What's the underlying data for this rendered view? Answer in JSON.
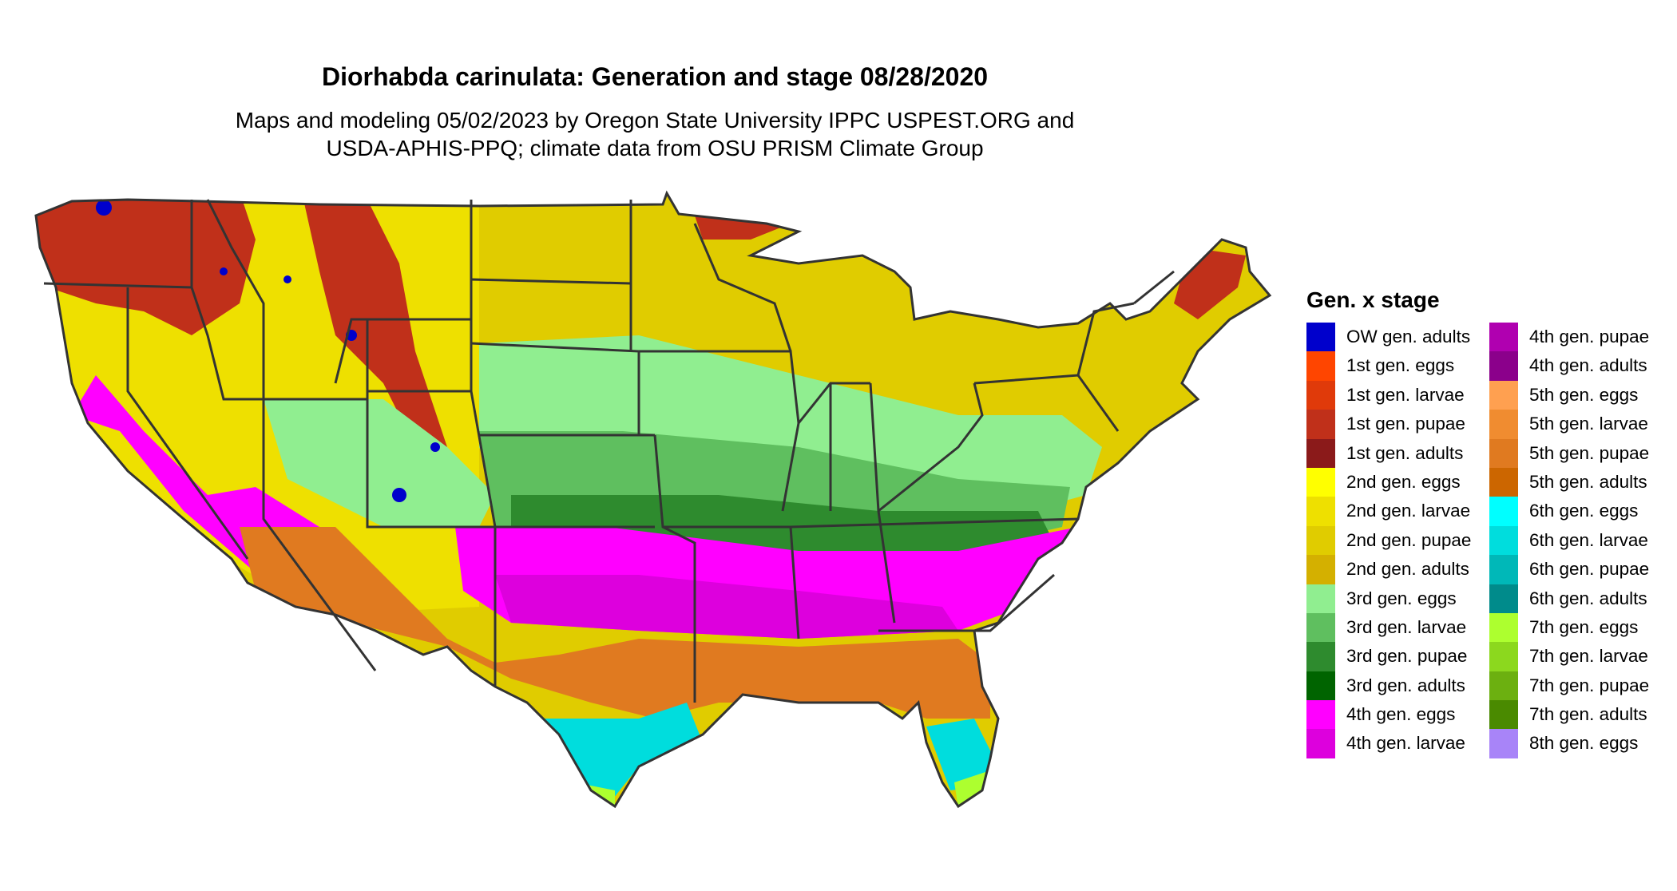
{
  "title": "Diorhabda carinulata: Generation and stage 08/28/2020",
  "subtitle_lines": [
    "Maps and modeling 05/02/2023 by Oregon State University IPPC USPEST.ORG and",
    "USDA-APHIS-PPQ; climate data from OSU PRISM Climate Group"
  ],
  "legend": {
    "title": "Gen. x stage",
    "columns": [
      [
        {
          "label": "OW gen. adults",
          "color": "#0000cc"
        },
        {
          "label": "1st gen. eggs",
          "color": "#ff4500"
        },
        {
          "label": "1st gen. larvae",
          "color": "#e03a0a"
        },
        {
          "label": "1st gen. pupae",
          "color": "#c0301a"
        },
        {
          "label": "1st gen. adults",
          "color": "#8b1a1a"
        },
        {
          "label": "2nd gen. eggs",
          "color": "#ffff00"
        },
        {
          "label": "2nd gen. larvae",
          "color": "#eee000"
        },
        {
          "label": "2nd gen. pupae",
          "color": "#e0cc00"
        },
        {
          "label": "2nd gen. adults",
          "color": "#d4b000"
        },
        {
          "label": "3rd gen. eggs",
          "color": "#90ee90"
        },
        {
          "label": "3rd gen. larvae",
          "color": "#5fbf5f"
        },
        {
          "label": "3rd gen. pupae",
          "color": "#2e8b2e"
        },
        {
          "label": "3rd gen. adults",
          "color": "#006400"
        },
        {
          "label": "4th gen. eggs",
          "color": "#ff00ff"
        },
        {
          "label": "4th gen. larvae",
          "color": "#dd00dd"
        }
      ],
      [
        {
          "label": "4th gen. pupae",
          "color": "#b000b0"
        },
        {
          "label": "4th gen. adults",
          "color": "#8b008b"
        },
        {
          "label": "5th gen. eggs",
          "color": "#ffa050"
        },
        {
          "label": "5th gen. larvae",
          "color": "#f08c30"
        },
        {
          "label": "5th gen. pupae",
          "color": "#e07a20"
        },
        {
          "label": "5th gen. adults",
          "color": "#cc6600"
        },
        {
          "label": "6th gen. eggs",
          "color": "#00ffff"
        },
        {
          "label": "6th gen. larvae",
          "color": "#00dddd"
        },
        {
          "label": "6th gen. pupae",
          "color": "#00b8b8"
        },
        {
          "label": "6th gen. adults",
          "color": "#008b8b"
        },
        {
          "label": "7th gen. eggs",
          "color": "#adff2f"
        },
        {
          "label": "7th gen. larvae",
          "color": "#8cd81e"
        },
        {
          "label": "7th gen. pupae",
          "color": "#6cb010"
        },
        {
          "label": "7th gen. adults",
          "color": "#4a8a00"
        },
        {
          "label": "8th gen. eggs",
          "color": "#a884f8"
        }
      ]
    ]
  },
  "region_colors": {
    "border": "#333333",
    "northwest": "#c0301a",
    "west_interior": "#eee000",
    "plains": "#e0cc00",
    "central": "#90ee90",
    "midsouth": "#5fbf5f",
    "midsouth_deep": "#2e8b2e",
    "south": "#ff00ff",
    "south_deep": "#dd00dd",
    "gulf": "#e07a20",
    "gulf_coast": "#00dddd",
    "tip": "#adff2f",
    "mountain_patches": "#0000cc"
  }
}
